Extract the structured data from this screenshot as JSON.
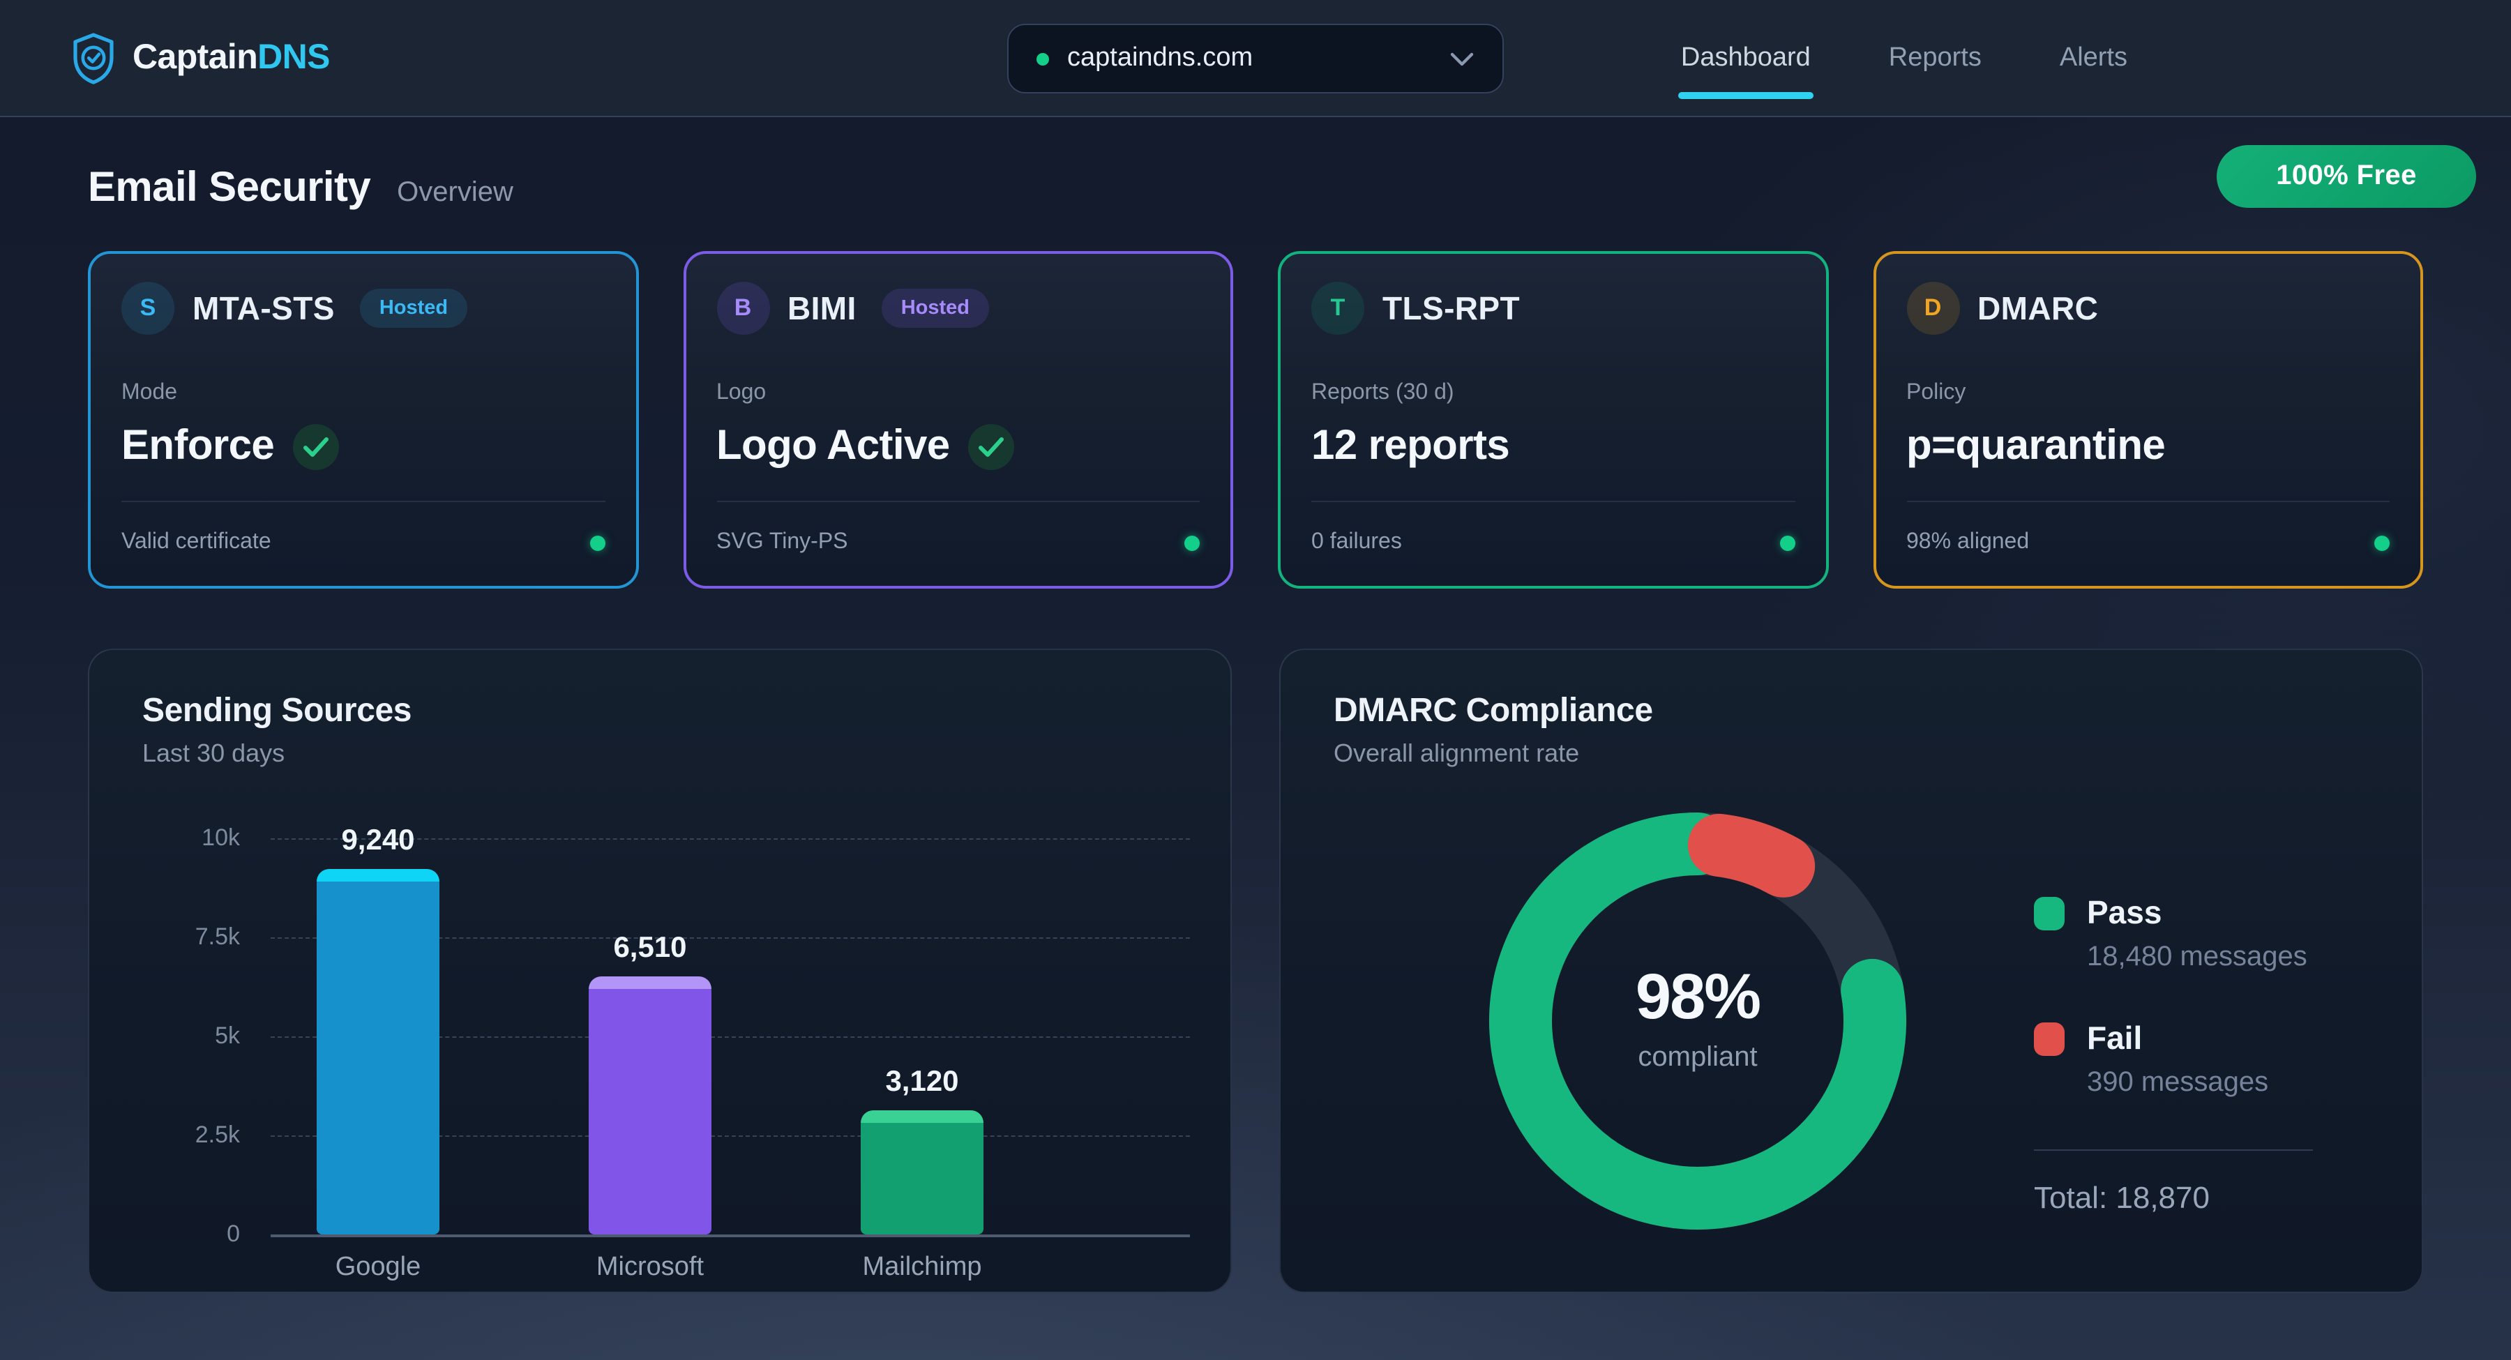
{
  "theme": {
    "accent_cyan": "#2fd3f0",
    "green": "#14cf8a",
    "badge_green": "#0fa56e",
    "text": "#eef3f9",
    "muted": "#8b97a9"
  },
  "header": {
    "brand": {
      "primary": "Captain",
      "accent": "DNS"
    },
    "domain_selector": {
      "value": "captaindns.com",
      "status_color": "#14cf8a"
    },
    "nav": [
      {
        "label": "Dashboard",
        "active": true
      },
      {
        "label": "Reports",
        "active": false
      },
      {
        "label": "Alerts",
        "active": false
      }
    ]
  },
  "page": {
    "title": "Email Security",
    "subtitle": "Overview",
    "badge": "100% Free"
  },
  "cards": [
    {
      "letter": "S",
      "title": "MTA-STS",
      "badge": "Hosted",
      "label": "Mode",
      "value": "Enforce",
      "value_check": true,
      "footer": "Valid certificate",
      "accent": "#2395d5",
      "accent_text": "#3cb9f5",
      "tint": "rgba(56,182,245,0.13)"
    },
    {
      "letter": "B",
      "title": "BIMI",
      "badge": "Hosted",
      "label": "Logo",
      "value": "Logo Active",
      "value_check": true,
      "footer": "SVG Tiny-PS",
      "accent": "#7d5ce5",
      "accent_text": "#a78bfa",
      "tint": "rgba(139,92,246,0.16)"
    },
    {
      "letter": "T",
      "title": "TLS-RPT",
      "badge": "",
      "label": "Reports (30 d)",
      "value": "12 reports",
      "value_check": false,
      "footer": "0 failures",
      "accent": "#12b37e",
      "accent_text": "#27c792",
      "tint": "rgba(16,185,129,0.13)"
    },
    {
      "letter": "D",
      "title": "DMARC",
      "badge": "",
      "label": "Policy",
      "value": "p=quarantine",
      "value_check": false,
      "footer": "98% aligned",
      "accent": "#d6951e",
      "accent_text": "#f0a525",
      "tint": "rgba(240,167,34,0.15)"
    }
  ],
  "chart_data": [
    {
      "type": "bar",
      "title": "Sending Sources",
      "subtitle": "Last 30 days",
      "categories": [
        "Google",
        "Microsoft",
        "Mailchimp"
      ],
      "values": [
        9240,
        6510,
        3120
      ],
      "value_labels": [
        "9,240",
        "6,510",
        "3,120"
      ],
      "bar_colors": [
        "#1791cc",
        "#8055e8",
        "#12a070"
      ],
      "bar_cap_colors": [
        "#0ed4f5",
        "#b295f6",
        "#3ad194"
      ],
      "xlabel": "",
      "ylabel": "",
      "ylim": [
        0,
        10000
      ],
      "yticks": [
        "10k",
        "7.5k",
        "5k",
        "2.5k",
        "0"
      ],
      "grid": "dashed horizontal"
    },
    {
      "type": "donut",
      "title": "DMARC Compliance",
      "subtitle": "Overall alignment rate",
      "center_value": "98%",
      "center_label": "compliant",
      "segments": [
        {
          "name": "Pass",
          "messages": 18480,
          "label": "18,480 messages",
          "color": "#17b880"
        },
        {
          "name": "Fail",
          "messages": 390,
          "label": "390 messages",
          "color": "#e2504b"
        }
      ],
      "total_label": "Total: 18,870",
      "track_color": "#27313f",
      "legend_position": "right"
    }
  ]
}
